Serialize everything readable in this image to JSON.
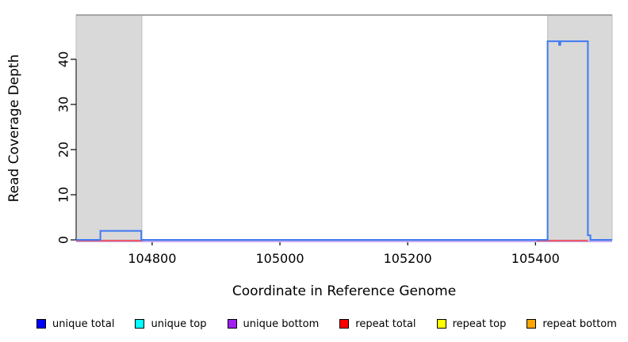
{
  "chart_data": {
    "type": "line",
    "title": "",
    "xlabel": "Coordinate in Reference Genome",
    "ylabel": "Read Coverage Depth",
    "xlim": [
      104681,
      105520
    ],
    "ylim": [
      0,
      49.8
    ],
    "xticks": [
      104800,
      105000,
      105200,
      105400
    ],
    "yticks": [
      0,
      10,
      20,
      30,
      40
    ],
    "grid": false,
    "legend_position": "bottom",
    "background_color": "#ffffff",
    "shaded_regions": [
      {
        "name": "repeat-region-left",
        "from": 104681,
        "to": 104784,
        "fill": "#d9d9d9",
        "border": "#bfbfbf"
      },
      {
        "name": "repeat-region-right",
        "from": 105419,
        "to": 105520,
        "fill": "#d9d9d9",
        "border": "#bfbfbf"
      }
    ],
    "top_border_color": "#a6a6a6",
    "series": [
      {
        "name": "unique bottom",
        "legend_color": "#a020f0",
        "line_color": "#c2a9f2",
        "segments": [
          [
            [
              104681,
              0
            ],
            [
              105520,
              0
            ]
          ]
        ]
      },
      {
        "name": "repeat total",
        "legend_color": "#ff0000",
        "line_color": "#ee5a66",
        "segments": [
          [
            [
              104681,
              0
            ],
            [
              104785,
              0
            ]
          ],
          [
            [
              105402,
              0
            ],
            [
              105482,
              0
            ]
          ]
        ]
      },
      {
        "name": "unique total",
        "legend_color": "#0000ff",
        "line_color": "#4079f2",
        "segments": [
          [
            [
              104681,
              0
            ],
            [
              104719,
              0
            ],
            [
              104719,
              2
            ],
            [
              104783,
              2
            ],
            [
              104783,
              0
            ],
            [
              105419,
              0
            ],
            [
              105419,
              44
            ],
            [
              105437,
              44
            ],
            [
              105437,
              43.2
            ],
            [
              105439,
              43.2
            ],
            [
              105439,
              44
            ],
            [
              105482,
              44
            ],
            [
              105482,
              1
            ],
            [
              105486,
              1
            ],
            [
              105486,
              0
            ],
            [
              105520,
              0
            ]
          ]
        ]
      }
    ],
    "legend": [
      {
        "label": "unique total",
        "color": "#0000ff"
      },
      {
        "label": "unique top",
        "color": "#00ffff"
      },
      {
        "label": "unique bottom",
        "color": "#a020f0"
      },
      {
        "label": "repeat total",
        "color": "#ff0000"
      },
      {
        "label": "repeat top",
        "color": "#ffff00"
      },
      {
        "label": "repeat bottom",
        "color": "#ffa500"
      }
    ]
  }
}
